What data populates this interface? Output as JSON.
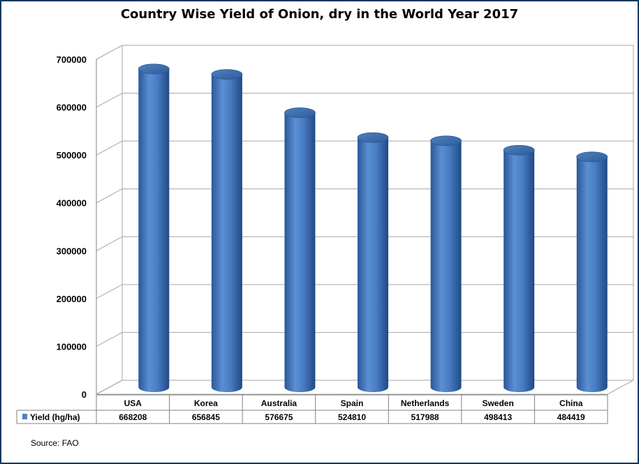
{
  "chart_data": {
    "type": "bar",
    "title": "Country Wise Yield of Onion, dry in the World Year 2017",
    "categories": [
      "USA",
      "Korea",
      "Australia",
      "Spain",
      "Netherlands",
      "Sweden",
      "China"
    ],
    "series": [
      {
        "name": "Yield (hg/ha)",
        "values": [
          668208,
          656845,
          576675,
          524810,
          517988,
          498413,
          484419
        ],
        "color": "#4f81bd"
      }
    ],
    "ylim": [
      0,
      700000
    ],
    "yticks": [
      0,
      100000,
      200000,
      300000,
      400000,
      500000,
      600000,
      700000
    ],
    "grid": true,
    "style": "3d-cylinder",
    "data_table": true,
    "source": "Source: FAO"
  }
}
